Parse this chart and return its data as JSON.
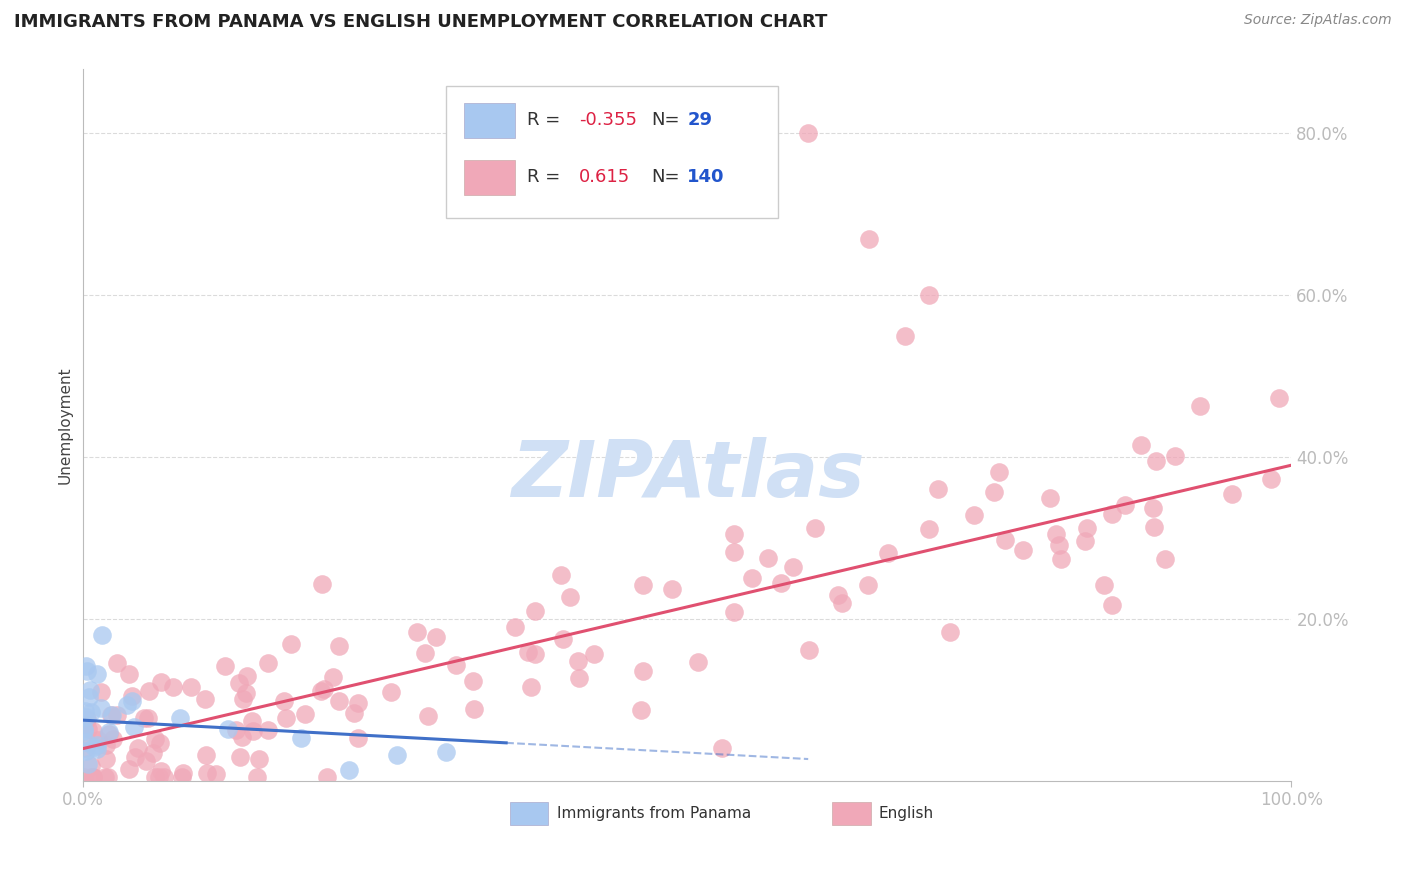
{
  "title": "IMMIGRANTS FROM PANAMA VS ENGLISH UNEMPLOYMENT CORRELATION CHART",
  "source": "Source: ZipAtlas.com",
  "ylabel": "Unemployment",
  "xlim": [
    0.0,
    1.0
  ],
  "ylim": [
    0.0,
    0.88
  ],
  "yticks": [
    0.2,
    0.4,
    0.6,
    0.8
  ],
  "ytick_labels": [
    "20.0%",
    "40.0%",
    "60.0%",
    "80.0%"
  ],
  "xtick_labels": [
    "0.0%",
    "100.0%"
  ],
  "xticks": [
    0.0,
    1.0
  ],
  "legend_r_blue": "-0.355",
  "legend_n_blue": "29",
  "legend_r_pink": "0.615",
  "legend_n_pink": "140",
  "blue_color": "#a8c8f0",
  "pink_color": "#f0a8b8",
  "blue_line_color": "#4070c8",
  "pink_line_color": "#e05070",
  "watermark_color": "#d0e0f5",
  "background_color": "#ffffff",
  "grid_color": "#cccccc",
  "blue_seed": 42,
  "pink_seed": 99,
  "title_fontsize": 13,
  "tick_label_color": "#5588cc",
  "ylabel_color": "#444444",
  "source_color": "#888888"
}
